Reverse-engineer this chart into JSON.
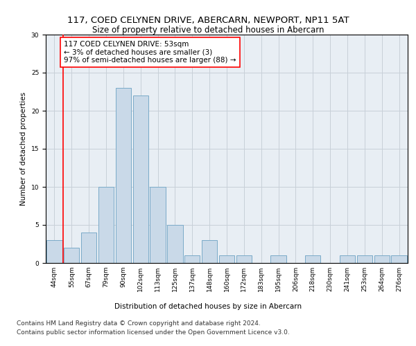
{
  "title": "117, COED CELYNEN DRIVE, ABERCARN, NEWPORT, NP11 5AT",
  "subtitle": "Size of property relative to detached houses in Abercarn",
  "xlabel": "Distribution of detached houses by size in Abercarn",
  "ylabel": "Number of detached properties",
  "categories": [
    "44sqm",
    "55sqm",
    "67sqm",
    "79sqm",
    "90sqm",
    "102sqm",
    "113sqm",
    "125sqm",
    "137sqm",
    "148sqm",
    "160sqm",
    "172sqm",
    "183sqm",
    "195sqm",
    "206sqm",
    "218sqm",
    "230sqm",
    "241sqm",
    "253sqm",
    "264sqm",
    "276sqm"
  ],
  "values": [
    3,
    2,
    4,
    10,
    23,
    22,
    10,
    5,
    1,
    3,
    1,
    1,
    0,
    1,
    0,
    1,
    0,
    1,
    1,
    1,
    1
  ],
  "bar_color": "#c9d9e8",
  "bar_edge_color": "#7aaac8",
  "annotation_text": "117 COED CELYNEN DRIVE: 53sqm\n← 3% of detached houses are smaller (3)\n97% of semi-detached houses are larger (88) →",
  "annotation_box_color": "white",
  "annotation_box_edge_color": "red",
  "vline_x": 0.5,
  "vline_color": "red",
  "ylim": [
    0,
    30
  ],
  "yticks": [
    0,
    5,
    10,
    15,
    20,
    25,
    30
  ],
  "footer_line1": "Contains HM Land Registry data © Crown copyright and database right 2024.",
  "footer_line2": "Contains public sector information licensed under the Open Government Licence v3.0.",
  "grid_color": "#c8d0d8",
  "background_color": "#e8eef4",
  "title_fontsize": 9.5,
  "subtitle_fontsize": 8.5,
  "axis_label_fontsize": 7.5,
  "tick_fontsize": 6.5,
  "annotation_fontsize": 7.5,
  "footer_fontsize": 6.5
}
